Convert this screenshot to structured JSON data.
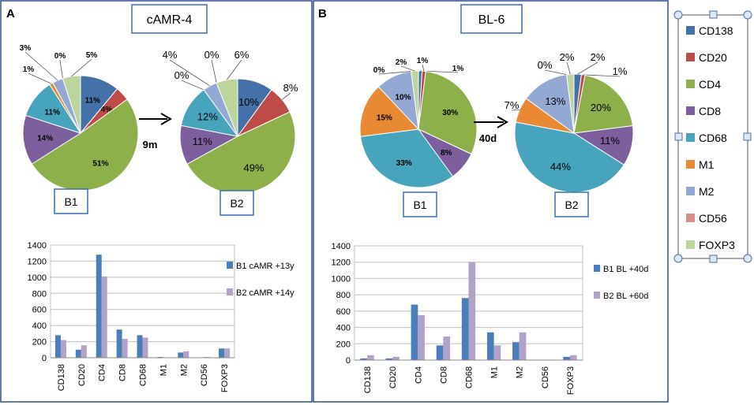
{
  "panels": {
    "A": {
      "letter": "A",
      "title": "cAMR-4",
      "arrow_label": "9m",
      "pie1_label": "B1",
      "pie2_label": "B2"
    },
    "B": {
      "letter": "B",
      "title": "BL-6",
      "arrow_label": "40d",
      "pie1_label": "B1",
      "pie2_label": "B2"
    }
  },
  "legend": {
    "items": [
      {
        "label": "CD138",
        "color": "#4472a8"
      },
      {
        "label": "CD20",
        "color": "#be4b48"
      },
      {
        "label": "CD4",
        "color": "#8db04a"
      },
      {
        "label": "CD8",
        "color": "#7d5f9e"
      },
      {
        "label": "CD68",
        "color": "#46a4bd"
      },
      {
        "label": "M1",
        "color": "#e88a34"
      },
      {
        "label": "M2",
        "color": "#93a9d3"
      },
      {
        "label": "CD56",
        "color": "#d98e8c"
      },
      {
        "label": "FOXP3",
        "color": "#bcd59c"
      }
    ]
  },
  "chart_data": [
    {
      "id": "A-B1",
      "type": "pie",
      "categories": [
        "CD138",
        "CD20",
        "CD4",
        "CD8",
        "CD68",
        "M1",
        "M2",
        "CD56",
        "FOXP3"
      ],
      "values": [
        11,
        4,
        51,
        14,
        11,
        1,
        3,
        0,
        5
      ],
      "labels": [
        "11%",
        "4%",
        "51%",
        "14%",
        "11%",
        "1%",
        "3%",
        "0%",
        "5%"
      ]
    },
    {
      "id": "A-B2",
      "type": "pie",
      "categories": [
        "CD138",
        "CD20",
        "CD4",
        "CD8",
        "CD68",
        "M1",
        "M2",
        "CD56",
        "FOXP3"
      ],
      "values": [
        10,
        8,
        49,
        11,
        12,
        0,
        4,
        0,
        6
      ],
      "labels": [
        "10%",
        "8%",
        "49%",
        "11%",
        "12%",
        "0%",
        "4%",
        "0%",
        "6%"
      ]
    },
    {
      "id": "B-B1",
      "type": "pie",
      "categories": [
        "CD138",
        "CD20",
        "CD4",
        "CD8",
        "CD68",
        "M1",
        "M2",
        "CD56",
        "FOXP3"
      ],
      "values": [
        1,
        1,
        30,
        8,
        33,
        15,
        10,
        0,
        2
      ],
      "labels": [
        "1%",
        "1%",
        "30%",
        "8%",
        "33%",
        "15%",
        "10%",
        "0%",
        "2%"
      ]
    },
    {
      "id": "B-B2",
      "type": "pie",
      "categories": [
        "CD138",
        "CD20",
        "CD4",
        "CD8",
        "CD68",
        "M1",
        "M2",
        "CD56",
        "FOXP3"
      ],
      "values": [
        2,
        1,
        20,
        11,
        44,
        7,
        13,
        0,
        2
      ],
      "labels": [
        "2%",
        "1%",
        "20%",
        "11%",
        "44%",
        "7%",
        "13%",
        "0%",
        "2%"
      ]
    },
    {
      "id": "A-bar",
      "type": "bar",
      "categories": [
        "CD138",
        "CD20",
        "CD4",
        "CD8",
        "CD68",
        "M1",
        "M2",
        "CD56",
        "FOXP3"
      ],
      "series": [
        {
          "name": "B1 cAMR +13y",
          "color": "#4a7ebb",
          "values": [
            280,
            100,
            1280,
            350,
            280,
            10,
            65,
            5,
            115
          ]
        },
        {
          "name": "B2 cAMR +14y",
          "color": "#b3a2c7",
          "values": [
            220,
            155,
            1010,
            235,
            250,
            5,
            80,
            10,
            115
          ]
        }
      ],
      "ylim": [
        0,
        1400
      ],
      "yticks": [
        "0",
        "200",
        "400",
        "600",
        "800",
        "1000",
        "1200",
        "1400"
      ]
    },
    {
      "id": "B-bar",
      "type": "bar",
      "categories": [
        "CD138",
        "CD20",
        "CD4",
        "CD8",
        "CD68",
        "M1",
        "M2",
        "CD56",
        "FOXP3"
      ],
      "series": [
        {
          "name": "B1 BL +40d",
          "color": "#4a7ebb",
          "values": [
            20,
            20,
            680,
            180,
            760,
            340,
            220,
            0,
            40
          ]
        },
        {
          "name": "B2 BL +60d",
          "color": "#b3a2c7",
          "values": [
            60,
            40,
            550,
            290,
            1200,
            180,
            340,
            0,
            60
          ]
        }
      ],
      "ylim": [
        0,
        1400
      ],
      "yticks": [
        "0",
        "200",
        "400",
        "600",
        "800",
        "1000",
        "1200",
        "1400"
      ]
    }
  ]
}
